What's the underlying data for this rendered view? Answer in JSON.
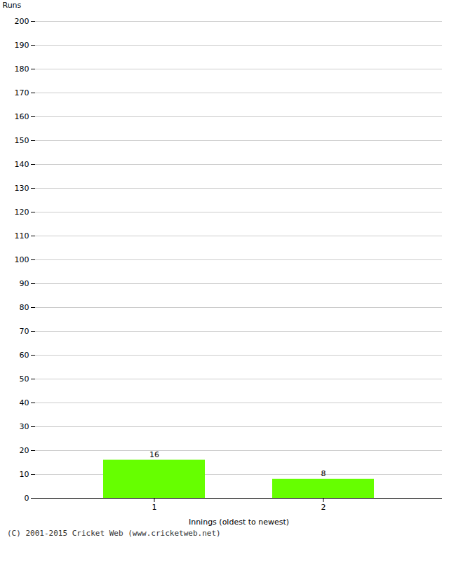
{
  "chart_data": {
    "type": "bar",
    "categories": [
      "1",
      "2"
    ],
    "values": [
      16,
      8
    ],
    "color": "#66ff00",
    "xlabel": "Innings (oldest to newest)",
    "ylabel": "Runs",
    "ylim": [
      0,
      200
    ],
    "yticks": [
      0,
      10,
      20,
      30,
      40,
      50,
      60,
      70,
      80,
      90,
      100,
      110,
      120,
      130,
      140,
      150,
      160,
      170,
      180,
      190,
      200
    ],
    "grid": true,
    "data_labels": true,
    "annotations": [
      "(C) 2001-2015 Cricket Web (www.cricketweb.net)"
    ]
  }
}
